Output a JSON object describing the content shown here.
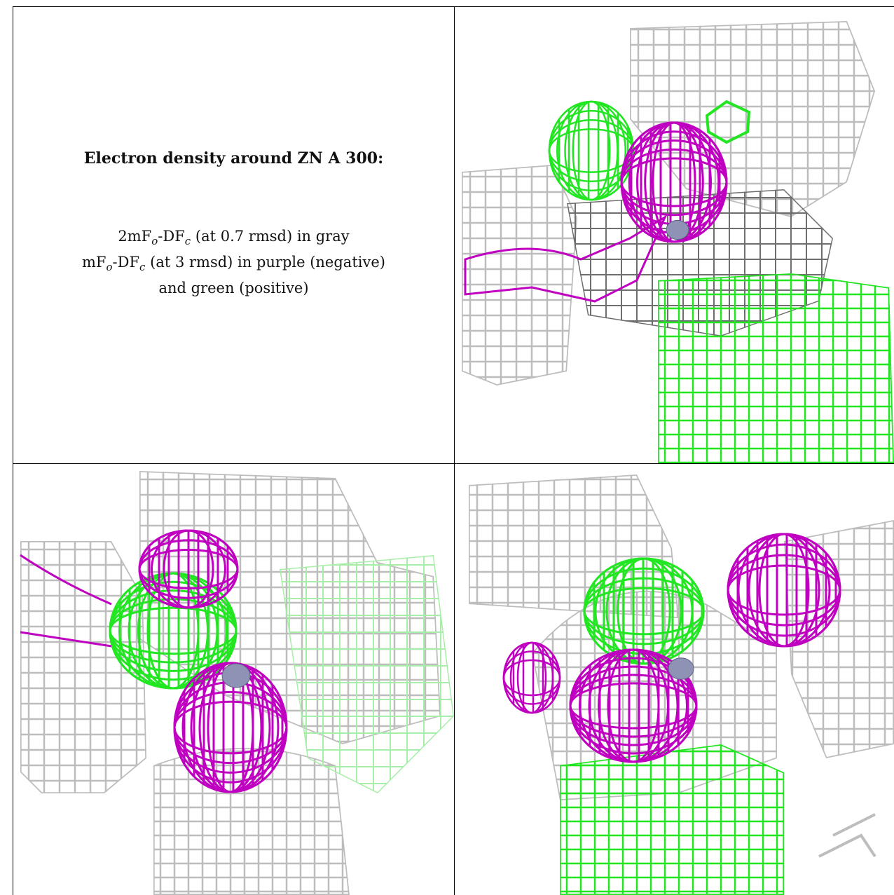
{
  "legend": {
    "title": "Electron density around ZN A 300:",
    "line1_a": "2mF",
    "line1_sub1": "o",
    "line1_b": "-DF",
    "line1_sub2": "c",
    "line1_c": " (at 0.7 rmsd) in gray",
    "line2_a": "mF",
    "line2_sub1": "o",
    "line2_b": "-DF",
    "line2_sub2": "c",
    "line2_c": " (at 3 rmsd) in purple (negative)",
    "line3": "and green (positive)"
  },
  "colors": {
    "gray_mesh": "#bdbdbd",
    "gray_dark": "#6e6e6e",
    "purple_negative": "#c000c0",
    "green_positive": "#22e622",
    "zinc_atom": "#8e93b5"
  },
  "panels": [
    {
      "name": "view-1",
      "icon": "electron-density-mesh-icon"
    },
    {
      "name": "view-2",
      "icon": "electron-density-mesh-icon"
    },
    {
      "name": "view-3",
      "icon": "electron-density-mesh-icon"
    }
  ]
}
